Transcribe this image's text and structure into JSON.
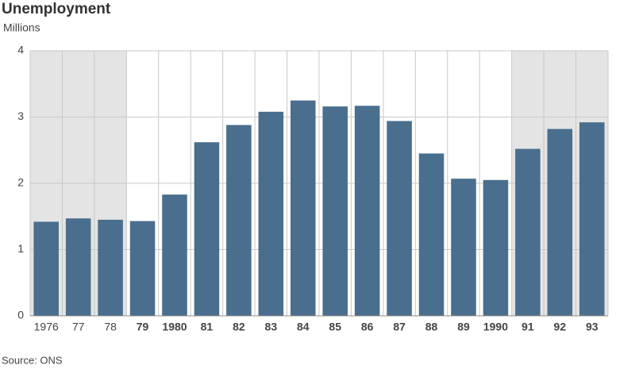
{
  "chart_data": {
    "type": "bar",
    "title": "Unemployment",
    "subtitle": "Millions",
    "source": "Source: ONS",
    "categories": [
      "1976",
      "77",
      "78",
      "79",
      "1980",
      "81",
      "82",
      "83",
      "84",
      "85",
      "86",
      "87",
      "88",
      "89",
      "1990",
      "91",
      "92",
      "93"
    ],
    "values": [
      1.42,
      1.47,
      1.45,
      1.43,
      1.83,
      2.62,
      2.88,
      3.08,
      3.25,
      3.16,
      3.17,
      2.94,
      2.45,
      2.07,
      2.05,
      2.52,
      2.82,
      2.92
    ],
    "color": "#4a6e8d",
    "ylim": [
      0,
      4
    ],
    "yticks": [
      0,
      1,
      2,
      3,
      4
    ],
    "grid": true
  }
}
